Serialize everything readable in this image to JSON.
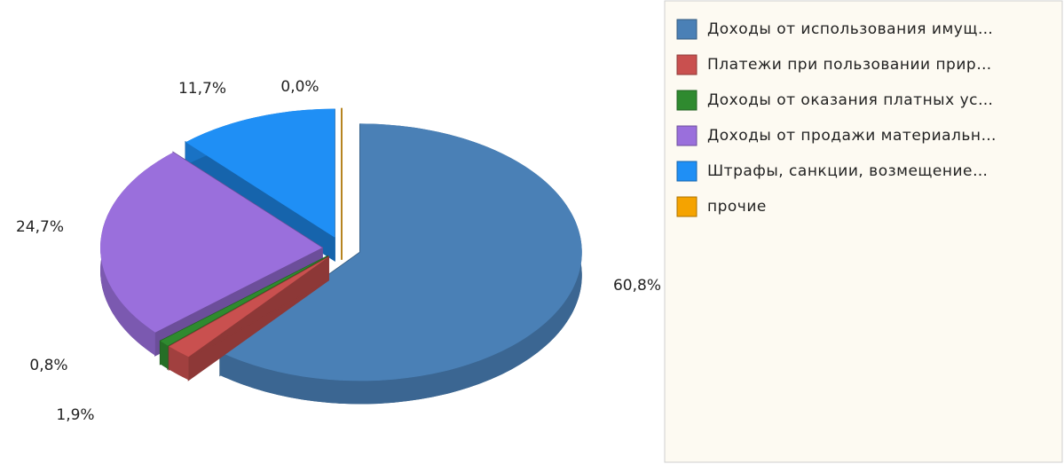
{
  "chart_data": {
    "type": "pie",
    "categories": [
      "Доходы от использования имущ…",
      "Платежи при пользовании прир…",
      "Доходы от оказания платных ус…",
      "Доходы от продажи материальн…",
      "Штрафы, санкции, возмещение…",
      "прочие"
    ],
    "values": [
      60.8,
      1.9,
      0.8,
      24.7,
      11.7,
      0.0
    ],
    "value_labels": [
      "60,8%",
      "1,9%",
      "0,8%",
      "24,7%",
      "11,7%",
      "0,0%"
    ],
    "colors": [
      "#4a80b6",
      "#c9504f",
      "#2f8a2f",
      "#9a6fdc",
      "#1f8ff5",
      "#f5a300"
    ],
    "legend": "right"
  }
}
